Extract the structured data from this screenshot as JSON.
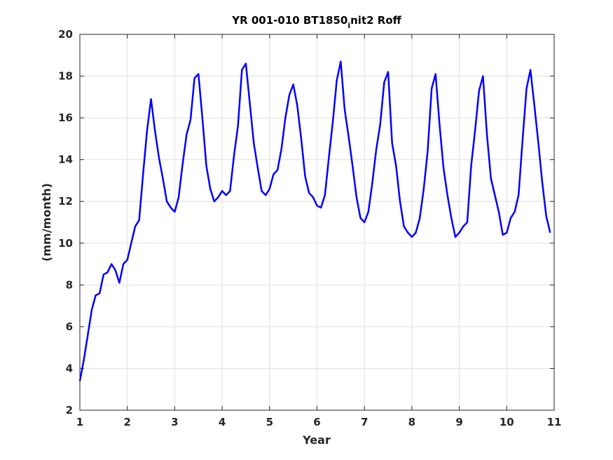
{
  "chart_data": {
    "type": "line",
    "title": "YR 001-010 BT1850",
    "title_sub": "i",
    "title_rest": "nit2 Roff",
    "xlabel": "Year",
    "ylabel": "(mm/month)",
    "xlim": [
      1,
      11
    ],
    "ylim": [
      2,
      20
    ],
    "xticks": [
      1,
      2,
      3,
      4,
      5,
      6,
      7,
      8,
      9,
      10,
      11
    ],
    "yticks": [
      2,
      4,
      6,
      8,
      10,
      12,
      14,
      16,
      18,
      20
    ],
    "grid": true,
    "line_color": "#0000ff",
    "series": [
      {
        "x": [
          1.0,
          1.083,
          1.167,
          1.25,
          1.333,
          1.417,
          1.5,
          1.583,
          1.667,
          1.75,
          1.833,
          1.917,
          2.0,
          2.083,
          2.167,
          2.25,
          2.333,
          2.417,
          2.5,
          2.583,
          2.667,
          2.75,
          2.833,
          2.917,
          3.0,
          3.083,
          3.167,
          3.25,
          3.333,
          3.417,
          3.5,
          3.583,
          3.667,
          3.75,
          3.833,
          3.917,
          4.0,
          4.083,
          4.167,
          4.25,
          4.333,
          4.417,
          4.5,
          4.583,
          4.667,
          4.75,
          4.833,
          4.917,
          5.0,
          5.083,
          5.167,
          5.25,
          5.333,
          5.417,
          5.5,
          5.583,
          5.667,
          5.75,
          5.833,
          5.917,
          6.0,
          6.083,
          6.167,
          6.25,
          6.333,
          6.417,
          6.5,
          6.583,
          6.667,
          6.75,
          6.833,
          6.917,
          7.0,
          7.083,
          7.167,
          7.25,
          7.333,
          7.417,
          7.5,
          7.583,
          7.667,
          7.75,
          7.833,
          7.917,
          8.0,
          8.083,
          8.167,
          8.25,
          8.333,
          8.417,
          8.5,
          8.583,
          8.667,
          8.75,
          8.833,
          8.917,
          9.0,
          9.083,
          9.167,
          9.25,
          9.333,
          9.417,
          9.5,
          9.583,
          9.667,
          9.75,
          9.833,
          9.917,
          10.0,
          10.083,
          10.167,
          10.25,
          10.333,
          10.417,
          10.5,
          10.583,
          10.667,
          10.75,
          10.833,
          10.917
        ],
        "y": [
          3.4,
          4.4,
          5.6,
          6.8,
          7.5,
          7.6,
          8.5,
          8.6,
          9.0,
          8.7,
          8.1,
          9.0,
          9.2,
          10.0,
          10.8,
          11.1,
          13.3,
          15.4,
          16.9,
          15.4,
          14.1,
          13.1,
          12.0,
          11.7,
          11.5,
          12.2,
          13.8,
          15.2,
          15.9,
          17.9,
          18.1,
          16.0,
          13.7,
          12.6,
          12.0,
          12.2,
          12.5,
          12.3,
          12.5,
          14.2,
          15.6,
          18.3,
          18.6,
          16.7,
          14.8,
          13.6,
          12.5,
          12.3,
          12.6,
          13.3,
          13.5,
          14.5,
          16.0,
          17.1,
          17.6,
          16.6,
          15.0,
          13.2,
          12.4,
          12.2,
          11.8,
          11.7,
          12.3,
          14.1,
          15.8,
          17.8,
          18.7,
          16.4,
          15.1,
          13.7,
          12.2,
          11.2,
          11.0,
          11.5,
          12.9,
          14.5,
          15.7,
          17.7,
          18.2,
          14.8,
          13.7,
          12.0,
          10.8,
          10.5,
          10.3,
          10.5,
          11.2,
          12.6,
          14.4,
          17.4,
          18.1,
          15.7,
          13.6,
          12.3,
          11.2,
          10.3,
          10.5,
          10.8,
          11.0,
          13.7,
          15.4,
          17.3,
          18.0,
          15.2,
          13.1,
          12.3,
          11.5,
          10.4,
          10.5,
          11.2,
          11.5,
          12.3,
          14.9,
          17.4,
          18.3,
          16.6,
          14.8,
          12.9,
          11.3,
          10.5
        ]
      }
    ]
  }
}
